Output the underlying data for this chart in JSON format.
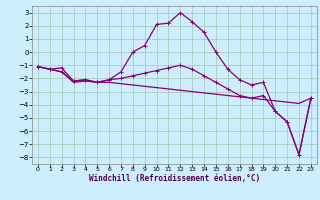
{
  "xlabel": "Windchill (Refroidissement éolien,°C)",
  "background_color": "#cceeff",
  "grid_color": "#aaccbb",
  "line_color": "#880077",
  "xlim": [
    -0.5,
    23.5
  ],
  "ylim": [
    -8.5,
    3.5
  ],
  "xticks": [
    0,
    1,
    2,
    3,
    4,
    5,
    6,
    7,
    8,
    9,
    10,
    11,
    12,
    13,
    14,
    15,
    16,
    17,
    18,
    19,
    20,
    21,
    22,
    23
  ],
  "yticks": [
    -8,
    -7,
    -6,
    -5,
    -4,
    -3,
    -2,
    -1,
    0,
    1,
    2,
    3
  ],
  "line1_x": [
    0,
    1,
    2,
    3,
    4,
    5,
    6,
    7,
    8,
    9,
    10,
    11,
    12,
    13,
    14,
    15,
    16,
    17,
    18,
    19,
    20,
    21,
    22,
    23
  ],
  "line1_y": [
    -1.1,
    -1.3,
    -1.2,
    -2.2,
    -2.1,
    -2.3,
    -2.1,
    -1.5,
    0.0,
    0.5,
    2.1,
    2.2,
    3.0,
    2.3,
    1.5,
    0.0,
    -1.3,
    -2.1,
    -2.5,
    -2.3,
    -4.5,
    -5.3,
    -7.8,
    -3.5
  ],
  "line2_x": [
    0,
    1,
    2,
    3,
    4,
    5,
    6,
    7,
    8,
    9,
    10,
    11,
    12,
    13,
    14,
    15,
    16,
    17,
    18,
    19,
    20,
    21,
    22,
    23
  ],
  "line2_y": [
    -1.1,
    -1.3,
    -1.5,
    -2.3,
    -2.2,
    -2.3,
    -2.3,
    -2.4,
    -2.5,
    -2.6,
    -2.7,
    -2.8,
    -2.9,
    -3.0,
    -3.1,
    -3.2,
    -3.3,
    -3.4,
    -3.5,
    -3.6,
    -3.7,
    -3.8,
    -3.9,
    -3.5
  ],
  "line3_x": [
    0,
    1,
    2,
    3,
    4,
    5,
    6,
    7,
    8,
    9,
    10,
    11,
    12,
    13,
    14,
    15,
    16,
    17,
    18,
    19,
    20,
    21,
    22,
    23
  ],
  "line3_y": [
    -1.1,
    -1.3,
    -1.5,
    -2.2,
    -2.1,
    -2.3,
    -2.1,
    -2.0,
    -1.8,
    -1.6,
    -1.4,
    -1.2,
    -1.0,
    -1.3,
    -1.8,
    -2.3,
    -2.8,
    -3.3,
    -3.5,
    -3.3,
    -4.5,
    -5.3,
    -7.8,
    -3.5
  ]
}
